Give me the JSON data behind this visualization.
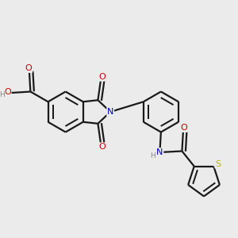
{
  "bg_color": "#ebebeb",
  "bond_color": "#1a1a1a",
  "bond_width": 1.6,
  "atom_colors": {
    "O": "#cc0000",
    "N": "#0000cc",
    "S": "#b8b800",
    "H": "#888888"
  },
  "figsize": [
    3.0,
    3.0
  ],
  "dpi": 100,
  "font_size": 8.0
}
